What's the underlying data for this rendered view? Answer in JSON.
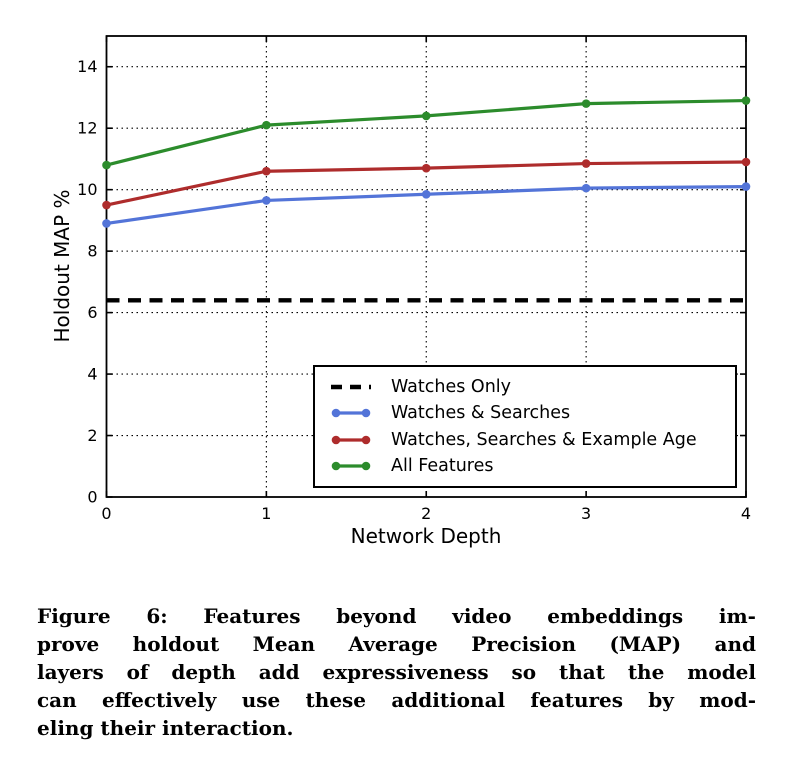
{
  "figure": {
    "caption_lines": [
      "Figure 6:  Features beyond video embeddings im-",
      "prove holdout Mean Average Precision (MAP) and",
      "layers of depth add expressiveness so that the model",
      "can effectively use these additional features by mod-",
      "eling their interaction."
    ]
  },
  "chart_data": {
    "type": "line",
    "title": "",
    "xlabel": "Network Depth",
    "ylabel": "Holdout MAP %",
    "x": [
      0,
      1,
      2,
      3,
      4
    ],
    "xlim": [
      0,
      4
    ],
    "ylim": [
      0,
      15
    ],
    "xticks": [
      0,
      1,
      2,
      3,
      4
    ],
    "yticks": [
      0,
      2,
      4,
      6,
      8,
      10,
      12,
      14
    ],
    "grid": true,
    "grid_style": "dotted-black",
    "legend_position": "inside-lower-right",
    "frame_color": "#000000",
    "series": [
      {
        "name": "Watches Only",
        "color": "#000000",
        "line_style": "dashed",
        "marker": "none",
        "values": [
          6.4,
          6.4,
          6.4,
          6.4,
          6.4
        ]
      },
      {
        "name": "Watches & Searches",
        "color": "#5374D8",
        "line_style": "solid",
        "marker": "circle",
        "values": [
          8.9,
          9.65,
          9.85,
          10.05,
          10.1
        ]
      },
      {
        "name": "Watches, Searches & Example Age",
        "color": "#AE2C2C",
        "line_style": "solid",
        "marker": "circle",
        "values": [
          9.5,
          10.6,
          10.7,
          10.85,
          10.9
        ]
      },
      {
        "name": "All Features",
        "color": "#2C8C2C",
        "line_style": "solid",
        "marker": "circle",
        "values": [
          10.8,
          12.1,
          12.4,
          12.8,
          12.9
        ]
      }
    ]
  }
}
